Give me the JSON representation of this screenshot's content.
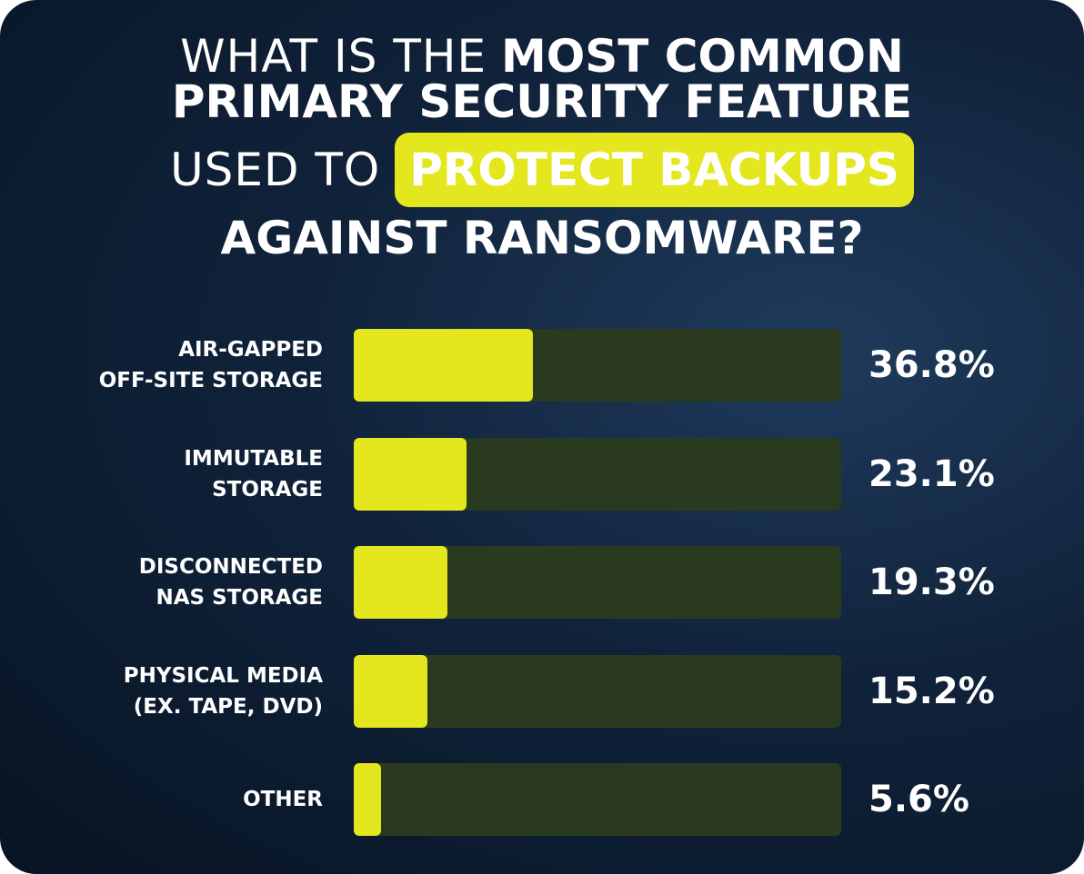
{
  "chart_data": {
    "type": "bar",
    "orientation": "horizontal",
    "title": [
      "WHAT IS THE",
      "MOST COMMON",
      "PRIMARY SECURITY FEATURE",
      "USED TO",
      "PROTECT BACKUPS",
      "AGAINST RANSOMWARE?"
    ],
    "categories": [
      "AIR-GAPPED\nOFF-SITE STORAGE",
      "IMMUTABLE\nSTORAGE",
      "DISCONNECTED\nNAS STORAGE",
      "PHYSICAL MEDIA\n(EX. TAPE, DVD)",
      "OTHER"
    ],
    "values": [
      36.8,
      23.1,
      19.3,
      15.2,
      5.6
    ],
    "value_labels": [
      "36.8%",
      "23.1%",
      "19.3%",
      "15.2%",
      "5.6%"
    ],
    "xlim": [
      0,
      100
    ],
    "color": "#e4e61e",
    "track_color": "#2a3a1f"
  }
}
